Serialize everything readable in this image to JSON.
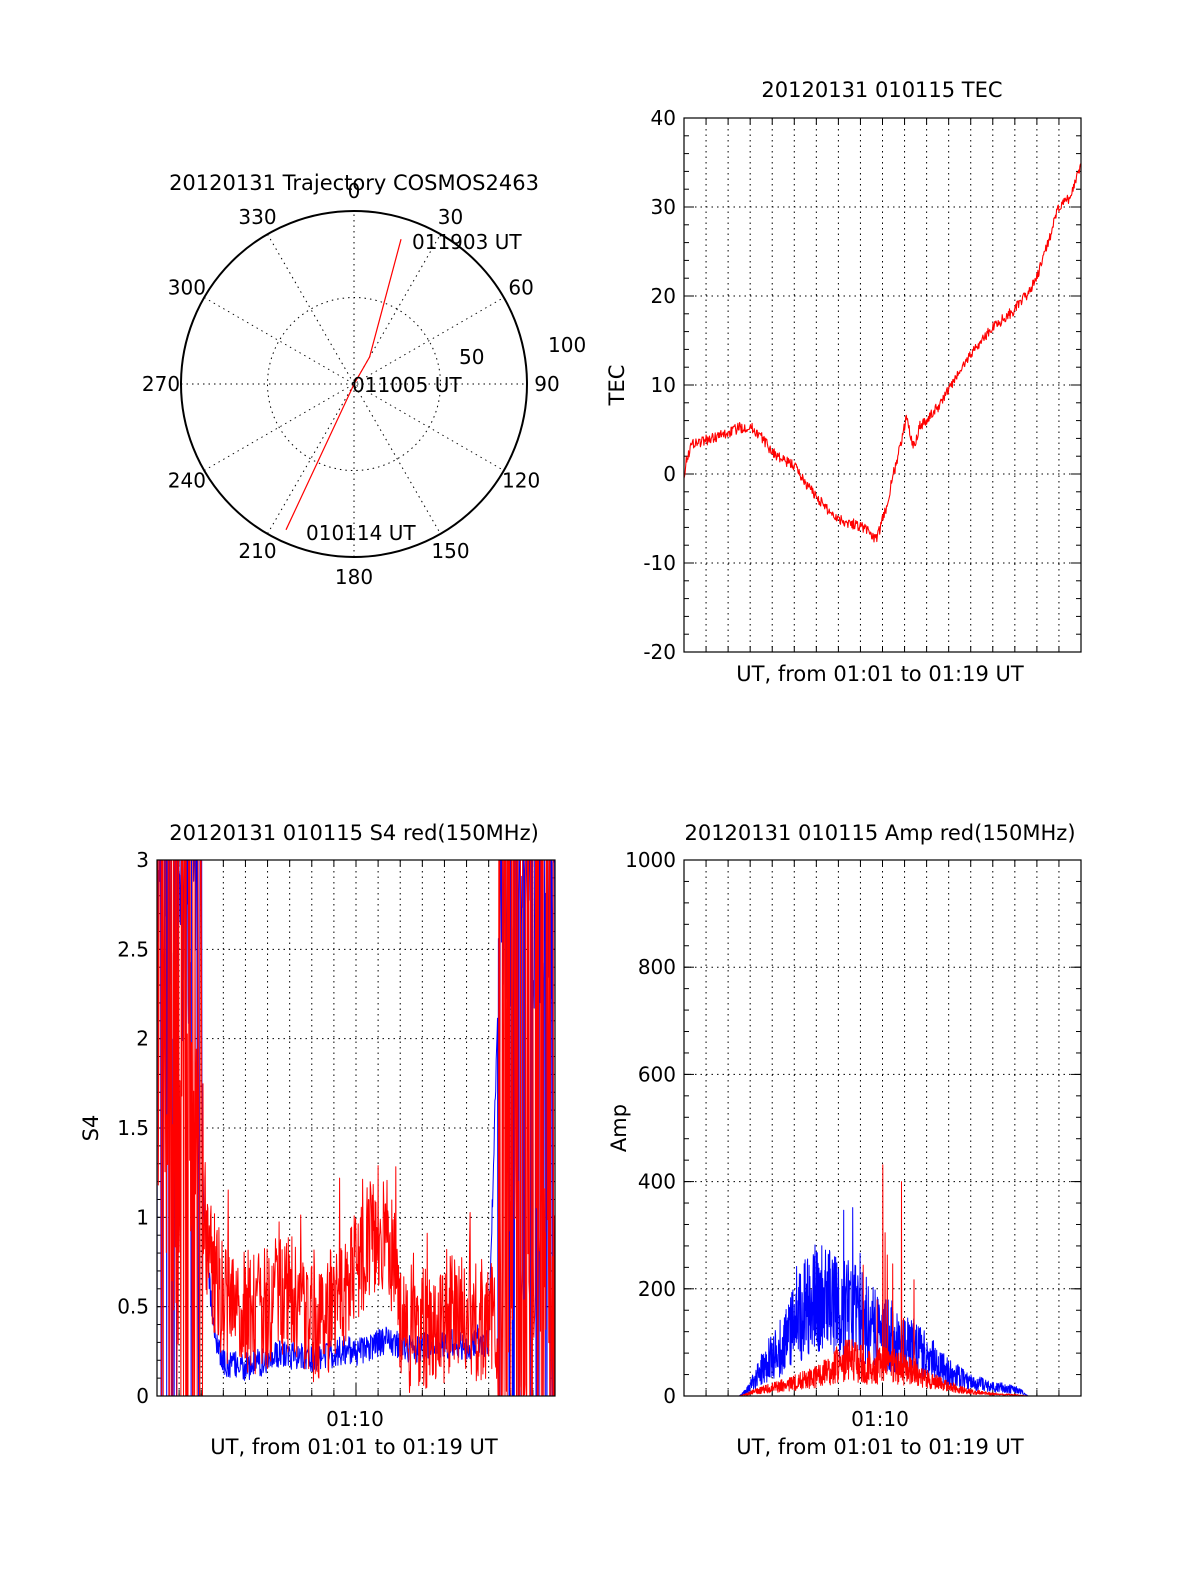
{
  "chart_data": [
    {
      "type": "polar",
      "title": "20120131 Trajectory COSMOS2463",
      "angle_ticks": [
        "0",
        "30",
        "60",
        "90",
        "120",
        "150",
        "180",
        "210",
        "240",
        "270",
        "300",
        "330"
      ],
      "radial_ticks": [
        "50",
        "100"
      ],
      "rmax": 100,
      "trajectory": {
        "color": "#ff0000",
        "points": [
          [
            18,
            88
          ],
          [
            30,
            18
          ],
          [
            198,
            0.3
          ],
          [
            205,
            93
          ]
        ]
      },
      "annotations": [
        {
          "text": "011903 UT",
          "az": 18,
          "r": 88
        },
        {
          "text": "011005 UT",
          "az": 30,
          "r": 0
        },
        {
          "text": "010114 UT",
          "az": 205,
          "r": 93
        }
      ]
    },
    {
      "type": "line",
      "title": "20120131 010115 TEC",
      "xlabel": "UT, from 01:01 to 01:19 UT",
      "ylabel": "TEC",
      "xlim": [
        0,
        18
      ],
      "ylim": [
        -20,
        40
      ],
      "yticks": [
        "-20",
        "-10",
        "0",
        "10",
        "20",
        "30",
        "40"
      ],
      "series": [
        {
          "color": "#ff0000",
          "x": [
            0,
            0.15,
            0.4,
            0.7,
            1.0,
            1.5,
            2.0,
            2.5,
            3.0,
            3.5,
            4.0,
            4.5,
            5.0,
            5.5,
            6.0,
            6.5,
            7.0,
            7.5,
            8.0,
            8.4,
            8.7,
            8.9,
            9.2,
            9.5,
            9.8,
            10.1,
            10.4,
            10.7,
            11.0,
            11.5,
            12.0,
            12.5,
            13.0,
            13.5,
            14.0,
            14.5,
            15.0,
            15.5,
            16.0,
            16.5,
            17.0,
            17.5,
            18.0
          ],
          "y": [
            0,
            2,
            3.5,
            3.6,
            3.8,
            4.2,
            4.6,
            5.2,
            5.3,
            4.2,
            2.5,
            1.5,
            1.0,
            -1,
            -2.5,
            -4,
            -5,
            -5.5,
            -5.8,
            -6.4,
            -7.5,
            -6,
            -3.5,
            0,
            3,
            6.5,
            3,
            5.5,
            6,
            7.5,
            9.5,
            11.5,
            13.5,
            15,
            16.5,
            17.5,
            18.5,
            20,
            22,
            26,
            30,
            31,
            35
          ]
        }
      ]
    },
    {
      "type": "line",
      "title": "20120131 010115 S4 red(150MHz)",
      "xlabel": "UT, from 01:01 to 01:19 UT",
      "ylabel": "S4",
      "xlim": [
        0,
        18
      ],
      "ylim": [
        0,
        3
      ],
      "yticks": [
        "0",
        "0.5",
        "1",
        "1.5",
        "2",
        "2.5",
        "3"
      ],
      "xtick_label": "01:10",
      "xtick_value": 9,
      "series": [
        {
          "color": "#0000ff",
          "x": [
            0,
            0.5,
            1.0,
            1.5,
            1.9,
            2.2,
            2.5,
            2.8,
            3.0,
            3.5,
            4.0,
            4.5,
            5.0,
            5.5,
            6.0,
            6.5,
            7.0,
            7.5,
            8.0,
            8.5,
            9.0,
            9.5,
            10.0,
            10.5,
            11.0,
            11.5,
            12.0,
            12.5,
            13.0,
            13.5,
            14.0,
            14.5,
            15.0,
            15.5,
            16.0,
            16.5,
            17.0,
            17.5,
            18.0
          ],
          "y": [
            2.9,
            2.7,
            2.8,
            2.6,
            1.5,
            0.9,
            0.45,
            0.25,
            0.18,
            0.17,
            0.16,
            0.18,
            0.2,
            0.24,
            0.22,
            0.24,
            0.21,
            0.22,
            0.24,
            0.26,
            0.24,
            0.27,
            0.3,
            0.32,
            0.28,
            0.26,
            0.27,
            0.3,
            0.28,
            0.3,
            0.27,
            0.32,
            0.28,
            2.6,
            2.8,
            2.9,
            2.7,
            2.9,
            2.8
          ]
        },
        {
          "color": "#ff0000",
          "x": [
            0,
            0.5,
            1.0,
            1.5,
            1.9,
            2.2,
            2.5,
            2.8,
            3.0,
            3.5,
            4.0,
            4.5,
            5.0,
            5.5,
            6.0,
            6.5,
            7.0,
            7.5,
            8.0,
            8.5,
            9.0,
            9.5,
            10.0,
            10.5,
            11.0,
            11.5,
            12.0,
            12.5,
            13.0,
            13.5,
            14.0,
            14.5,
            15.0,
            15.5,
            16.0,
            16.5,
            17.0,
            17.5,
            18.0
          ],
          "y": [
            1.8,
            1.2,
            1.0,
            1.5,
            1.2,
            0.9,
            0.7,
            0.62,
            0.55,
            0.5,
            0.48,
            0.45,
            0.5,
            0.55,
            0.6,
            0.5,
            0.42,
            0.45,
            0.5,
            0.6,
            0.7,
            0.85,
            0.95,
            0.9,
            0.45,
            0.35,
            0.38,
            0.4,
            0.42,
            0.45,
            0.48,
            0.4,
            0.45,
            0.3,
            0.6,
            0.4,
            0.3,
            0.5,
            0.4
          ]
        }
      ]
    },
    {
      "type": "line",
      "title": "20120131 010115 Amp red(150MHz)",
      "xlabel": "UT, from 01:01 to 01:19 UT",
      "ylabel": "Amp",
      "xlim": [
        0,
        18
      ],
      "ylim": [
        0,
        1000
      ],
      "yticks": [
        "0",
        "200",
        "400",
        "600",
        "800",
        "1000"
      ],
      "xtick_label": "01:10",
      "xtick_value": 9,
      "series": [
        {
          "color": "#0000ff",
          "x": [
            0,
            1.0,
            2.0,
            2.5,
            2.8,
            3.2,
            3.6,
            4.0,
            4.5,
            5.0,
            5.5,
            6.0,
            6.5,
            7.0,
            7.5,
            8.0,
            8.5,
            9.0,
            9.5,
            10.0,
            10.5,
            11.0,
            11.5,
            12.0,
            12.5,
            13.0,
            13.5,
            14.0,
            14.5,
            15.0,
            15.3,
            15.6,
            16.0,
            17.0,
            18.0
          ],
          "y": [
            0,
            0,
            0,
            0,
            8,
            30,
            55,
            75,
            95,
            130,
            160,
            180,
            175,
            170,
            160,
            150,
            130,
            120,
            110,
            95,
            90,
            75,
            60,
            45,
            35,
            25,
            22,
            18,
            15,
            12,
            8,
            0,
            0,
            0,
            0
          ]
        },
        {
          "color": "#ff0000",
          "x": [
            0,
            1.0,
            2.0,
            2.5,
            2.8,
            3.2,
            3.6,
            4.0,
            4.5,
            5.0,
            5.5,
            6.0,
            6.5,
            7.0,
            7.5,
            8.0,
            8.5,
            9.0,
            9.5,
            10.0,
            10.5,
            11.0,
            11.5,
            12.0,
            12.5,
            13.0,
            13.5,
            14.0,
            14.5,
            15.0,
            15.3,
            15.6,
            16.0,
            17.0,
            18.0
          ],
          "y": [
            0,
            0,
            0,
            0,
            3,
            8,
            12,
            15,
            20,
            25,
            30,
            35,
            45,
            60,
            70,
            60,
            50,
            60,
            55,
            50,
            45,
            35,
            25,
            18,
            12,
            8,
            6,
            4,
            3,
            2,
            1,
            0,
            0,
            0,
            0
          ]
        }
      ]
    }
  ]
}
